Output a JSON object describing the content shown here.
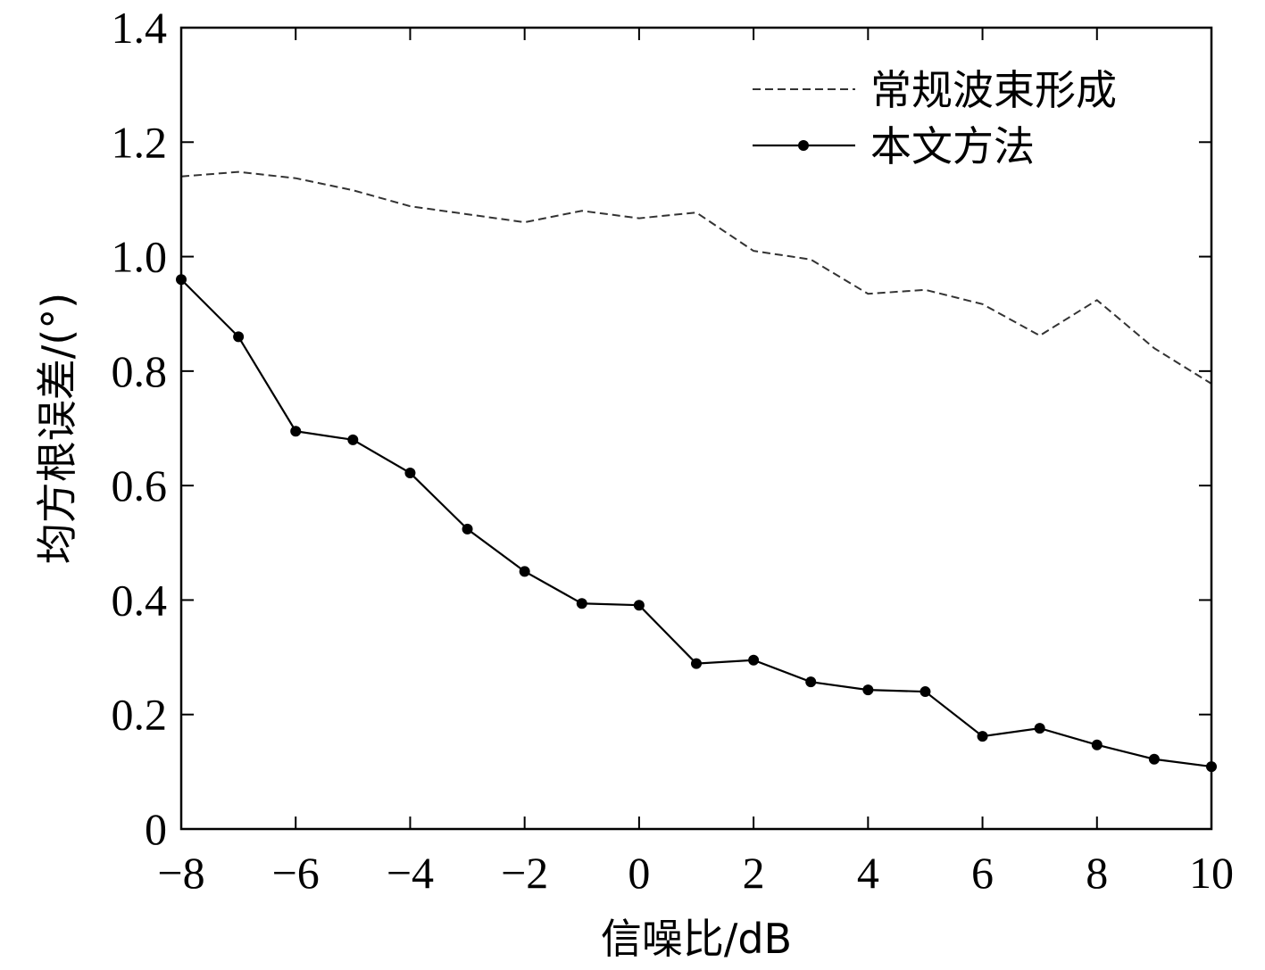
{
  "chart_data": {
    "type": "line",
    "title": "",
    "xlabel": "信噪比/dB",
    "ylabel": "均方根误差/(°)",
    "xlim": [
      -8,
      10
    ],
    "ylim": [
      0,
      1.4
    ],
    "xticks": [
      -8,
      -6,
      -4,
      -2,
      0,
      2,
      4,
      6,
      8,
      10
    ],
    "xtick_labels": [
      "−8",
      "−6",
      "−4",
      "−2",
      "0",
      "2",
      "4",
      "6",
      "8",
      "10"
    ],
    "yticks": [
      0,
      0.2,
      0.4,
      0.6,
      0.8,
      1.0,
      1.2,
      1.4
    ],
    "ytick_labels": [
      "0",
      "0.2",
      "0.4",
      "0.6",
      "0.8",
      "1.0",
      "1.2",
      "1.4"
    ],
    "grid": false,
    "legend_position": "top-right",
    "x": [
      -8,
      -7,
      -6,
      -5,
      -4,
      -3,
      -2,
      -1,
      0,
      1,
      2,
      3,
      4,
      5,
      6,
      7,
      8,
      9,
      10
    ],
    "series": [
      {
        "name": "常规波束形成",
        "style": "dashed",
        "color": "#333333",
        "markers": false,
        "values": [
          1.14,
          1.148,
          1.137,
          1.116,
          1.088,
          1.074,
          1.06,
          1.08,
          1.067,
          1.077,
          1.01,
          0.995,
          0.935,
          0.942,
          0.917,
          0.862,
          0.924,
          0.84,
          0.778
        ]
      },
      {
        "name": "本文方法",
        "style": "solid",
        "color": "#000000",
        "markers": true,
        "values": [
          0.96,
          0.86,
          0.695,
          0.68,
          0.622,
          0.524,
          0.45,
          0.394,
          0.391,
          0.289,
          0.295,
          0.257,
          0.243,
          0.24,
          0.162,
          0.176,
          0.147,
          0.122,
          0.109
        ]
      }
    ]
  }
}
